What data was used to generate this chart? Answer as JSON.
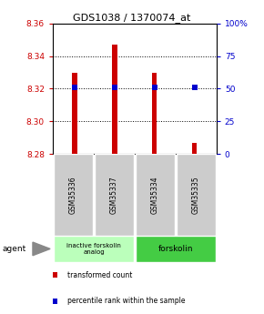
{
  "title": "GDS1038 / 1370074_at",
  "samples": [
    "GSM35336",
    "GSM35337",
    "GSM35334",
    "GSM35335"
  ],
  "bar_values": [
    8.33,
    8.347,
    8.33,
    8.287
  ],
  "bar_base": 8.28,
  "percentile_values": [
    8.321,
    8.321,
    8.321,
    8.321
  ],
  "ylim": [
    8.28,
    8.36
  ],
  "y2lim": [
    0,
    100
  ],
  "yticks": [
    8.28,
    8.3,
    8.32,
    8.34,
    8.36
  ],
  "y2ticks": [
    0,
    25,
    50,
    75,
    100
  ],
  "y2ticklabels": [
    "0",
    "25",
    "50",
    "75",
    "100%"
  ],
  "bar_color": "#cc0000",
  "percentile_color": "#0000cc",
  "group1_label": "inactive forskolin\nanalog",
  "group2_label": "forskolin",
  "group1_color": "#bbffbb",
  "group2_color": "#44cc44",
  "legend_items": [
    "transformed count",
    "percentile rank within the sample"
  ],
  "bar_width": 0.12,
  "ylabel_color": "#cc0000",
  "y2label_color": "#0000cc",
  "sample_bg": "#cccccc"
}
